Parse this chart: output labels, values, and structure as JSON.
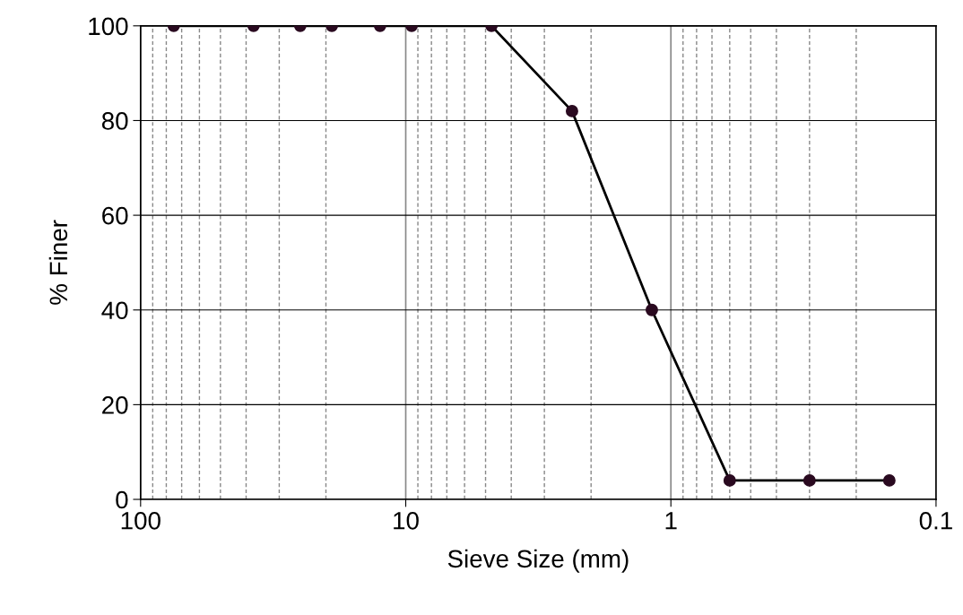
{
  "chart_data": {
    "type": "line",
    "xlabel": "Sieve Size (mm)",
    "ylabel": "% Finer",
    "x": [
      75,
      37.5,
      25,
      19,
      12.5,
      9.5,
      4.75,
      2.36,
      1.18,
      0.6,
      0.3,
      0.15
    ],
    "series": [
      {
        "color": "#000000",
        "values": [
          100,
          100,
          100,
          100,
          100,
          100,
          100,
          82,
          40,
          4,
          4,
          4
        ]
      }
    ],
    "marker": "circle",
    "line_style": "solid",
    "log": "x",
    "grid": true,
    "xlim": [
      100,
      0.1
    ],
    "xticks": [
      100,
      {
        "value": 90,
        "label": null
      },
      {
        "value": 80,
        "label": null
      },
      {
        "value": 70,
        "label": null
      },
      {
        "value": 60,
        "label": null
      },
      {
        "value": 50,
        "label": null
      },
      {
        "value": 40,
        "label": null
      },
      {
        "value": 30,
        "label": null
      },
      {
        "value": 20,
        "label": null
      },
      10,
      {
        "value": 9,
        "label": null
      },
      {
        "value": 8,
        "label": null
      },
      {
        "value": 7,
        "label": null
      },
      {
        "value": 6,
        "label": null
      },
      {
        "value": 5,
        "label": null
      },
      {
        "value": 4,
        "label": null
      },
      {
        "value": 3,
        "label": null
      },
      {
        "value": 2,
        "label": null
      },
      1,
      {
        "value": 0.9,
        "label": null
      },
      {
        "value": 0.8,
        "label": null
      },
      {
        "value": 0.7,
        "label": null
      },
      {
        "value": 0.6,
        "label": null
      },
      {
        "value": 0.5,
        "label": null
      },
      {
        "value": 0.4,
        "label": null
      },
      {
        "value": 0.3,
        "label": null
      },
      {
        "value": 0.2,
        "label": null
      },
      0.1
    ],
    "ylim": [
      0,
      100
    ],
    "yticks": [
      0,
      20,
      40,
      60,
      80,
      100
    ]
  }
}
